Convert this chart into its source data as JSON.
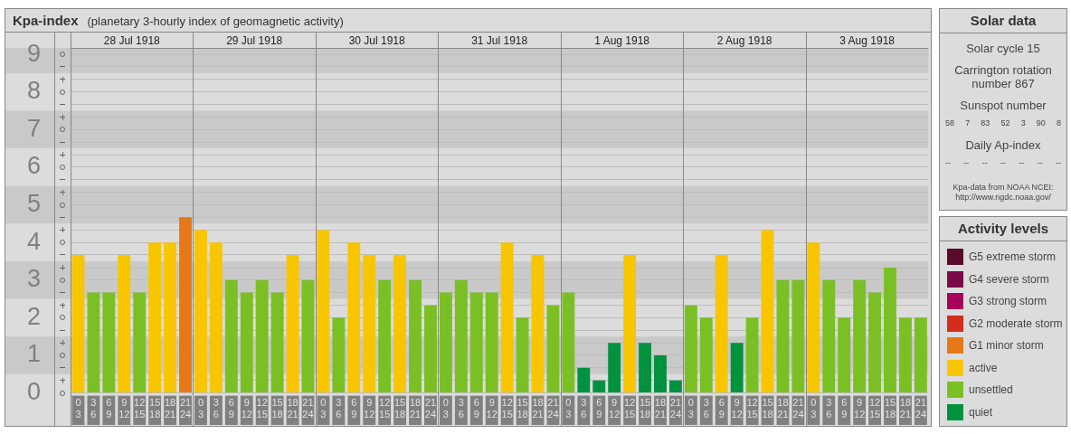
{
  "chart_data": [
    {
      "type": "bar",
      "title": "Kpa-index",
      "subtitle": "(planetary 3-hourly index of geomagnetic activity)",
      "annotations": [
        "28 Jul 1918",
        "29 Jul 1918",
        "30 Jul 1918",
        "31 Jul 1918",
        "1 Aug 1918",
        "2 Aug 1918",
        "3 Aug 1918"
      ],
      "categories": [
        "0\n3",
        "3\n6",
        "6\n9",
        "9\n12",
        "12\n15",
        "15\n18",
        "18\n21",
        "21\n24",
        "0\n3",
        "3\n6",
        "6\n9",
        "9\n12",
        "12\n15",
        "15\n18",
        "18\n21",
        "21\n24",
        "0\n3",
        "3\n6",
        "6\n9",
        "9\n12",
        "12\n15",
        "15\n18",
        "18\n21",
        "21\n24",
        "0\n3",
        "3\n6",
        "6\n9",
        "9\n12",
        "12\n15",
        "15\n18",
        "18\n21",
        "21\n24",
        "0\n3",
        "3\n6",
        "6\n9",
        "9\n12",
        "12\n15",
        "15\n18",
        "18\n21",
        "21\n24",
        "0\n3",
        "3\n6",
        "6\n9",
        "9\n12",
        "12\n15",
        "15\n18",
        "18\n21",
        "21\n24",
        "0\n3",
        "3\n6",
        "6\n9",
        "9\n12",
        "12\n15",
        "15\n18",
        "18\n21",
        "21\n24"
      ],
      "stacked": true,
      "series": [
        {
          "name": "G5 extreme storm",
          "color": "#5a0a2a",
          "values": [
            null,
            null,
            null,
            null,
            null,
            null,
            null,
            null,
            null,
            null,
            null,
            null,
            null,
            null,
            null,
            null,
            null,
            null,
            null,
            null,
            null,
            null,
            null,
            null,
            null,
            null,
            null,
            null,
            null,
            null,
            null,
            null,
            null,
            null,
            null,
            null,
            null,
            null,
            null,
            null,
            null,
            null,
            null,
            null,
            null,
            null,
            null,
            null,
            null,
            null,
            null,
            null,
            null,
            null,
            null,
            null
          ]
        },
        {
          "name": "G4 severe storm",
          "color": "#7a0a46",
          "values": [
            null,
            null,
            null,
            null,
            null,
            null,
            null,
            null,
            null,
            null,
            null,
            null,
            null,
            null,
            null,
            null,
            null,
            null,
            null,
            null,
            null,
            null,
            null,
            null,
            null,
            null,
            null,
            null,
            null,
            null,
            null,
            null,
            null,
            null,
            null,
            null,
            null,
            null,
            null,
            null,
            null,
            null,
            null,
            null,
            null,
            null,
            null,
            null,
            null,
            null,
            null,
            null,
            null,
            null,
            null,
            null
          ]
        },
        {
          "name": "G3 strong storm",
          "color": "#a5005a",
          "values": [
            null,
            null,
            null,
            null,
            null,
            null,
            null,
            null,
            null,
            null,
            null,
            null,
            null,
            null,
            null,
            null,
            null,
            null,
            null,
            null,
            null,
            null,
            null,
            null,
            null,
            null,
            null,
            null,
            null,
            null,
            null,
            null,
            null,
            null,
            null,
            null,
            null,
            null,
            null,
            null,
            null,
            null,
            null,
            null,
            null,
            null,
            null,
            null,
            null,
            null,
            null,
            null,
            null,
            null,
            null,
            null
          ]
        },
        {
          "name": "G2 moderate storm",
          "color": "#d42d1b",
          "values": [
            null,
            null,
            null,
            null,
            null,
            null,
            null,
            null,
            null,
            null,
            null,
            null,
            null,
            null,
            null,
            null,
            null,
            null,
            null,
            null,
            null,
            null,
            null,
            null,
            null,
            null,
            null,
            null,
            null,
            null,
            null,
            null,
            null,
            null,
            null,
            null,
            null,
            null,
            null,
            null,
            null,
            null,
            null,
            null,
            null,
            null,
            null,
            null,
            null,
            null,
            null,
            null,
            null,
            null,
            null,
            null
          ]
        },
        {
          "name": "G1 minor storm",
          "color": "#e67817",
          "values": [
            null,
            null,
            null,
            null,
            null,
            null,
            null,
            4.67,
            null,
            null,
            null,
            null,
            null,
            null,
            null,
            null,
            null,
            null,
            null,
            null,
            null,
            null,
            null,
            null,
            null,
            null,
            null,
            null,
            null,
            null,
            null,
            null,
            null,
            null,
            null,
            null,
            null,
            null,
            null,
            null,
            null,
            null,
            null,
            null,
            null,
            null,
            null,
            null,
            null,
            null,
            null,
            null,
            null,
            null,
            null,
            null
          ]
        },
        {
          "name": "active",
          "color": "#f8c600",
          "values": [
            3.67,
            null,
            null,
            3.67,
            null,
            4,
            4,
            null,
            4.33,
            4,
            null,
            null,
            null,
            null,
            3.67,
            null,
            4.33,
            null,
            4,
            3.67,
            null,
            3.67,
            null,
            null,
            null,
            null,
            null,
            null,
            4,
            null,
            3.67,
            null,
            null,
            null,
            null,
            null,
            3.67,
            null,
            null,
            null,
            null,
            null,
            3.67,
            null,
            null,
            4.33,
            null,
            null,
            4,
            null,
            null,
            null,
            null,
            null,
            null,
            null
          ]
        },
        {
          "name": "unsettled",
          "color": "#7ac024",
          "values": [
            null,
            2.67,
            2.67,
            null,
            2.67,
            null,
            null,
            null,
            null,
            null,
            3,
            2.67,
            3,
            2.67,
            null,
            3,
            null,
            2,
            null,
            null,
            3,
            null,
            3,
            2.33,
            2.67,
            3,
            2.67,
            2.67,
            null,
            2,
            null,
            2.33,
            2.67,
            null,
            null,
            null,
            null,
            null,
            null,
            null,
            2.33,
            2,
            null,
            null,
            2,
            null,
            3,
            3,
            null,
            3,
            2,
            3,
            2.67,
            3.33,
            2,
            2
          ]
        },
        {
          "name": "quiet",
          "color": "#00923f",
          "values": [
            null,
            null,
            null,
            null,
            null,
            null,
            null,
            null,
            null,
            null,
            null,
            null,
            null,
            null,
            null,
            null,
            null,
            null,
            null,
            null,
            null,
            null,
            null,
            null,
            null,
            null,
            null,
            null,
            null,
            null,
            null,
            null,
            null,
            0.67,
            0.33,
            1.33,
            null,
            1.33,
            1,
            0.33,
            null,
            null,
            null,
            1.33,
            null,
            null,
            null,
            null,
            null,
            null,
            null,
            null,
            null,
            null,
            null,
            null
          ]
        }
      ],
      "ylim": [
        0,
        9.17
      ],
      "yticks": [
        0,
        {
          "value": 0.33,
          "label": null
        },
        {
          "value": 0.67,
          "label": null
        },
        1,
        {
          "value": 1.33,
          "label": null
        },
        {
          "value": 1.67,
          "label": null
        },
        2,
        {
          "value": 2.33,
          "label": null
        },
        {
          "value": 2.67,
          "label": null
        },
        3,
        {
          "value": 3.33,
          "label": null
        },
        {
          "value": 3.67,
          "label": null
        },
        4,
        {
          "value": 4.33,
          "label": null
        },
        {
          "value": 4.67,
          "label": null
        },
        5,
        {
          "value": 5.33,
          "label": null
        },
        {
          "value": 5.67,
          "label": null
        },
        6,
        {
          "value": 6.33,
          "label": null
        },
        {
          "value": 6.67,
          "label": null
        },
        7,
        {
          "value": 7.33,
          "label": null
        },
        {
          "value": 7.67,
          "label": null
        },
        8,
        {
          "value": 8.33,
          "label": null
        },
        {
          "value": 8.67,
          "label": null
        },
        9
      ],
      "bands": [
        {
          "axis": "y",
          "from": 0.5,
          "to": 1.5,
          "color": "#c9c9c9"
        },
        {
          "axis": "y",
          "from": 2.5,
          "to": 3.5,
          "color": "#c9c9c9"
        },
        {
          "axis": "y",
          "from": 4.5,
          "to": 5.5,
          "color": "#c9c9c9"
        },
        {
          "axis": "y",
          "from": 6.5,
          "to": 7.5,
          "color": "#c9c9c9"
        },
        {
          "axis": "y",
          "from": 8.5,
          "to": 9.17,
          "color": "#c9c9c9"
        }
      ],
      "grid": "y",
      "legend": "right",
      "legend_title": "Activity levels"
    },
    {
      "type": "other",
      "title": "Solar data",
      "annotations": [
        "Solar cycle 15",
        "Carrington rotation number 867",
        "Sunspot number",
        "58 7 83 52 3 90 8",
        "Daily Ap-index",
        "-- -- -- -- -- -- --",
        "Kpa-data from NOAA NCEI: http://www.ngdc.noaa.gov/"
      ]
    }
  ]
}
